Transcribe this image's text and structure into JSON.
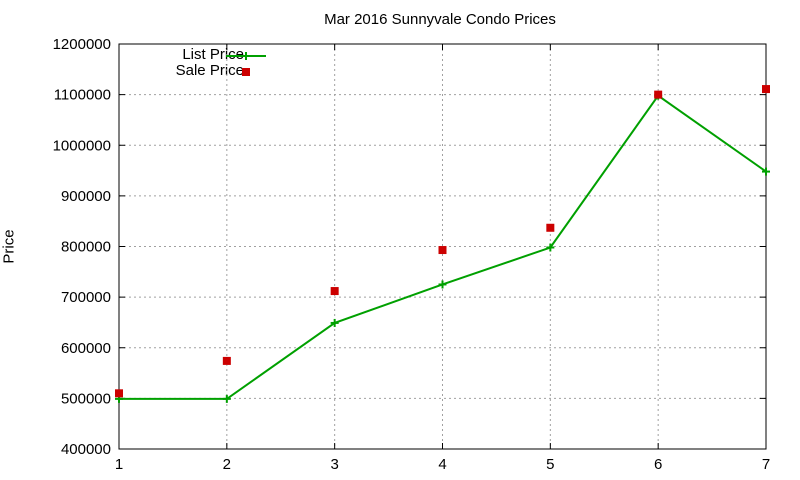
{
  "chart_data": {
    "type": "line",
    "title": "Mar 2016 Sunnyvale Condo Prices",
    "xlabel": "",
    "ylabel": "Price",
    "x": [
      1,
      2,
      3,
      4,
      5,
      6,
      7
    ],
    "xlim": [
      1,
      7
    ],
    "ylim": [
      400000,
      1200000
    ],
    "xticks": [
      "1",
      "2",
      "3",
      "4",
      "5",
      "6",
      "7"
    ],
    "yticks": [
      "400000",
      "500000",
      "600000",
      "700000",
      "800000",
      "900000",
      "1000000",
      "1100000",
      "1200000"
    ],
    "grid": true,
    "legend_position": "top-left",
    "series": [
      {
        "name": "List Price",
        "style": "linespoints",
        "color": "#00a000",
        "values": [
          499000,
          499000,
          649000,
          725000,
          798000,
          1098000,
          948000
        ]
      },
      {
        "name": "Sale Price",
        "style": "points",
        "color": "#cc0000",
        "values": [
          510000,
          574000,
          712000,
          793000,
          837000,
          1100000,
          1111000
        ]
      }
    ]
  }
}
